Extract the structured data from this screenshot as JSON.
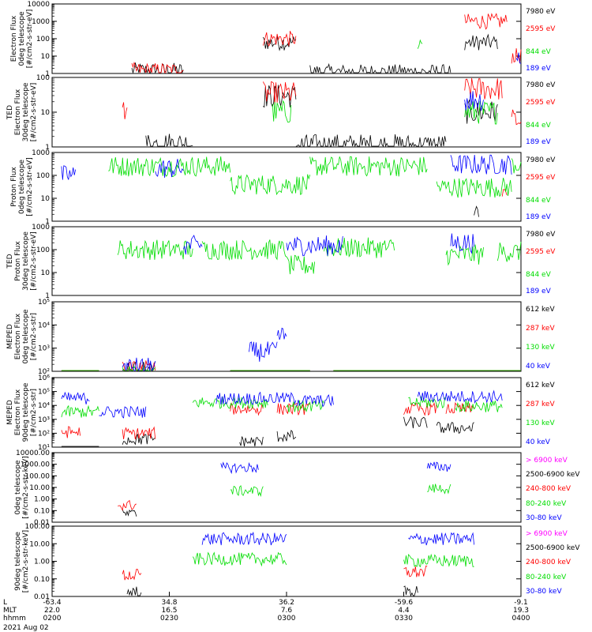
{
  "chart_data": {
    "type": "line",
    "date_label": "2021 Aug 02",
    "x_rows": [
      {
        "label": "L",
        "ticks": [
          "-63.4",
          "34.8",
          "36.2",
          "-59.6",
          "-9.1"
        ]
      },
      {
        "label": "MLT",
        "ticks": [
          "22.0",
          "16.5",
          "7.6",
          "4.4",
          "19.3"
        ]
      },
      {
        "label": "hhmm",
        "ticks": [
          "0200",
          "0230",
          "0300",
          "0330",
          "0400"
        ]
      }
    ],
    "panels": [
      {
        "ylabel": [
          "Electron Flux",
          "0deg telescope",
          "[#/cm2-s-str-eV]"
        ],
        "yticks": [
          "1",
          "10",
          "100",
          "1000",
          "10000"
        ],
        "legend": [
          {
            "text": "7980 eV",
            "color": "#000000"
          },
          {
            "text": "2595 eV",
            "color": "#ff0000"
          },
          {
            "text": "844 eV",
            "color": "#00dd00"
          },
          {
            "text": "189 eV",
            "color": "#0000ff"
          }
        ]
      },
      {
        "ylabel": [
          "TED",
          "Electron Flux",
          "30deg telescope",
          "[#/cm2-s-str-eV]"
        ],
        "yticks": [
          "1",
          "10",
          "100"
        ],
        "legend": [
          {
            "text": "7980 eV",
            "color": "#000000"
          },
          {
            "text": "2595 eV",
            "color": "#ff0000"
          },
          {
            "text": "844 eV",
            "color": "#00dd00"
          },
          {
            "text": "189 eV",
            "color": "#0000ff"
          }
        ]
      },
      {
        "ylabel": [
          "Proton Flux",
          "0deg telescope",
          "[#/cm2-s-str-eV]"
        ],
        "yticks": [
          "1",
          "10",
          "100",
          "1000"
        ],
        "legend": [
          {
            "text": "7980 eV",
            "color": "#000000"
          },
          {
            "text": "2595 eV",
            "color": "#ff0000"
          },
          {
            "text": "844 eV",
            "color": "#00dd00"
          },
          {
            "text": "189 eV",
            "color": "#0000ff"
          }
        ]
      },
      {
        "ylabel": [
          "TED",
          "Proton Flux",
          "30deg telescope",
          "[#/cm2-s-str-eV]"
        ],
        "yticks": [
          "1",
          "10",
          "100",
          "1000"
        ],
        "legend": [
          {
            "text": "7980 eV",
            "color": "#000000"
          },
          {
            "text": "2595 eV",
            "color": "#ff0000"
          },
          {
            "text": "844 eV",
            "color": "#00dd00"
          },
          {
            "text": "189 eV",
            "color": "#0000ff"
          }
        ]
      },
      {
        "ylabel": [
          "MEPED",
          "Electron Flux",
          "0deg telescope",
          "[#/cm2-s-str]"
        ],
        "yticks": [
          "10²",
          "10³",
          "10⁴",
          "10⁵"
        ],
        "legend": [
          {
            "text": "612 keV",
            "color": "#000000"
          },
          {
            "text": "287 keV",
            "color": "#ff0000"
          },
          {
            "text": "130 keV",
            "color": "#00dd00"
          },
          {
            "text": "40 keV",
            "color": "#0000ff"
          }
        ]
      },
      {
        "ylabel": [
          "MEPED",
          "Electron Flux",
          "90deg telescope",
          "[#/cm2-s-str]"
        ],
        "yticks": [
          "10¹",
          "10²",
          "10³",
          "10⁴",
          "10⁵",
          "10⁶"
        ],
        "legend": [
          {
            "text": "612 keV",
            "color": "#000000"
          },
          {
            "text": "287 keV",
            "color": "#ff0000"
          },
          {
            "text": "130 keV",
            "color": "#00dd00"
          },
          {
            "text": "40 keV",
            "color": "#0000ff"
          }
        ]
      },
      {
        "ylabel": [
          "0deg telescope",
          "[#/cm2-s-str-keV]"
        ],
        "yticks": [
          "0.01",
          "0.10",
          "1.00",
          "10.00",
          "100.00",
          "1000.00",
          "10000.00"
        ],
        "legend": [
          {
            "text": "> 6900 keV",
            "color": "#ff00ff"
          },
          {
            "text": "2500-6900 keV",
            "color": "#000000"
          },
          {
            "text": "240-800 keV",
            "color": "#ff0000"
          },
          {
            "text": "80-240 keV",
            "color": "#00dd00"
          },
          {
            "text": "30-80 keV",
            "color": "#0000ff"
          }
        ]
      },
      {
        "ylabel": [
          "90deg telescope",
          "[#/cm2-s-str-keV]"
        ],
        "yticks": [
          "0.01",
          "0.10",
          "1.00",
          "10.00",
          "100.00"
        ],
        "legend": [
          {
            "text": "> 6900 keV",
            "color": "#ff00ff"
          },
          {
            "text": "2500-6900 keV",
            "color": "#000000"
          },
          {
            "text": "240-800 keV",
            "color": "#ff0000"
          },
          {
            "text": "80-240 keV",
            "color": "#00dd00"
          },
          {
            "text": "30-80 keV",
            "color": "#0000ff"
          }
        ]
      }
    ],
    "series_data": [
      [
        {
          "color": "#000000",
          "segments": [
            [
              0.17,
              0.28,
              1.5
            ],
            [
              0.45,
              0.52,
              60
            ],
            [
              0.88,
              0.95,
              60
            ],
            [
              0.55,
              0.85,
              1.2
            ]
          ]
        },
        {
          "color": "#ff0000",
          "segments": [
            [
              0.17,
              0.28,
              1.5
            ],
            [
              0.45,
              0.52,
              100
            ],
            [
              0.88,
              0.97,
              1000
            ],
            [
              0.98,
              1.0,
              10
            ]
          ]
        },
        {
          "color": "#00dd00",
          "segments": [
            [
              0.78,
              0.79,
              30
            ]
          ]
        },
        {
          "color": "#0000ff",
          "segments": [
            [
              0.99,
              1.0,
              10
            ]
          ]
        }
      ],
      [
        {
          "color": "#000000",
          "segments": [
            [
              0.2,
              0.3,
              1.3
            ],
            [
              0.45,
              0.52,
              80
            ],
            [
              0.52,
              0.84,
              1.1
            ],
            [
              0.88,
              0.95,
              20
            ]
          ]
        },
        {
          "color": "#ff0000",
          "segments": [
            [
              0.15,
              0.16,
              30
            ],
            [
              0.45,
              0.52,
              100
            ],
            [
              0.88,
              0.96,
              150
            ],
            [
              0.98,
              1.0,
              10
            ]
          ]
        },
        {
          "color": "#00dd00",
          "segments": [
            [
              0.47,
              0.51,
              20
            ],
            [
              0.88,
              0.95,
              20
            ]
          ]
        },
        {
          "color": "#0000ff",
          "segments": [
            [
              0.88,
              0.92,
              60
            ]
          ]
        }
      ],
      [
        {
          "color": "#000000",
          "segments": [
            [
              0.9,
              0.91,
              3
            ]
          ]
        },
        {
          "color": "#ff0000",
          "segments": [
            [
              0.96,
              0.97,
              20
            ]
          ]
        },
        {
          "color": "#00dd00",
          "segments": [
            [
              0.12,
              0.38,
              250
            ],
            [
              0.38,
              0.55,
              40
            ],
            [
              0.55,
              0.8,
              250
            ],
            [
              0.82,
              0.98,
              30
            ],
            [
              0.98,
              1.0,
              300
            ]
          ]
        },
        {
          "color": "#0000ff",
          "segments": [
            [
              0.02,
              0.05,
              100
            ],
            [
              0.22,
              0.28,
              200
            ],
            [
              0.85,
              0.98,
              300
            ]
          ]
        }
      ],
      [
        {
          "color": "#000000",
          "segments": []
        },
        {
          "color": "#ff0000",
          "segments": []
        },
        {
          "color": "#00dd00",
          "segments": [
            [
              0.14,
              0.3,
              100
            ],
            [
              0.32,
              0.5,
              100
            ],
            [
              0.5,
              0.56,
              20
            ],
            [
              0.58,
              0.73,
              120
            ],
            [
              0.84,
              0.92,
              60
            ],
            [
              0.95,
              1.0,
              80
            ]
          ]
        },
        {
          "color": "#0000ff",
          "segments": [
            [
              0.28,
              0.32,
              150
            ],
            [
              0.5,
              0.62,
              150
            ],
            [
              0.85,
              0.9,
              200
            ]
          ]
        }
      ],
      [
        {
          "color": "#000000",
          "segments": [
            [
              0.02,
              0.1,
              3
            ],
            [
              0.15,
              0.22,
              80
            ],
            [
              0.38,
              0.55,
              3
            ],
            [
              0.6,
              1.0,
              3
            ]
          ]
        },
        {
          "color": "#ff0000",
          "segments": [
            [
              0.02,
              0.1,
              5
            ],
            [
              0.15,
              0.22,
              90
            ],
            [
              0.38,
              0.55,
              5
            ],
            [
              0.6,
              1.0,
              5
            ]
          ]
        },
        {
          "color": "#00dd00",
          "segments": [
            [
              0.02,
              0.1,
              2
            ],
            [
              0.15,
              0.22,
              50
            ],
            [
              0.38,
              0.55,
              2
            ],
            [
              0.6,
              1.0,
              2
            ]
          ]
        },
        {
          "color": "#0000ff",
          "segments": [
            [
              0.15,
              0.22,
              120
            ],
            [
              0.42,
              0.48,
              600
            ],
            [
              0.48,
              0.5,
              3000
            ]
          ]
        }
      ],
      [
        {
          "color": "#000000",
          "segments": [
            [
              0.02,
              0.1,
              3
            ],
            [
              0.15,
              0.22,
              30
            ],
            [
              0.4,
              0.45,
              20
            ],
            [
              0.48,
              0.52,
              50
            ],
            [
              0.75,
              0.8,
              500
            ],
            [
              0.82,
              0.9,
              200
            ]
          ]
        },
        {
          "color": "#ff0000",
          "segments": [
            [
              0.02,
              0.06,
              100
            ],
            [
              0.15,
              0.22,
              80
            ],
            [
              0.38,
              0.45,
              5000
            ],
            [
              0.48,
              0.55,
              5000
            ],
            [
              0.75,
              0.82,
              5000
            ],
            [
              0.84,
              0.9,
              5000
            ]
          ]
        },
        {
          "color": "#00dd00",
          "segments": [
            [
              0.02,
              0.1,
              3000
            ],
            [
              0.3,
              0.46,
              15000
            ],
            [
              0.5,
              0.58,
              8000
            ],
            [
              0.76,
              0.84,
              15000
            ],
            [
              0.86,
              0.96,
              8000
            ]
          ]
        },
        {
          "color": "#0000ff",
          "segments": [
            [
              0.02,
              0.08,
              30000
            ],
            [
              0.1,
              0.2,
              3000
            ],
            [
              0.35,
              0.52,
              30000
            ],
            [
              0.52,
              0.6,
              20000
            ],
            [
              0.78,
              0.96,
              40000
            ]
          ]
        }
      ],
      [
        {
          "color": "#ff00ff",
          "segments": []
        },
        {
          "color": "#000000",
          "segments": [
            [
              0.15,
              0.18,
              0.05
            ]
          ]
        },
        {
          "color": "#ff0000",
          "segments": [
            [
              0.14,
              0.18,
              0.3
            ]
          ]
        },
        {
          "color": "#00dd00",
          "segments": [
            [
              0.38,
              0.45,
              5
            ],
            [
              0.8,
              0.85,
              8
            ]
          ]
        },
        {
          "color": "#0000ff",
          "segments": [
            [
              0.36,
              0.44,
              500
            ],
            [
              0.8,
              0.85,
              600
            ]
          ]
        }
      ],
      [
        {
          "color": "#ff00ff",
          "segments": []
        },
        {
          "color": "#000000",
          "segments": [
            [
              0.16,
              0.19,
              0.02
            ],
            [
              0.75,
              0.78,
              0.02
            ]
          ]
        },
        {
          "color": "#ff0000",
          "segments": [
            [
              0.15,
              0.19,
              0.3
            ],
            [
              0.75,
              0.8,
              0.5
            ]
          ]
        },
        {
          "color": "#00dd00",
          "segments": [
            [
              0.3,
              0.5,
              4
            ],
            [
              0.75,
              0.9,
              3
            ]
          ]
        },
        {
          "color": "#0000ff",
          "segments": [
            [
              0.32,
              0.5,
              100
            ],
            [
              0.76,
              0.9,
              100
            ]
          ]
        }
      ]
    ]
  }
}
